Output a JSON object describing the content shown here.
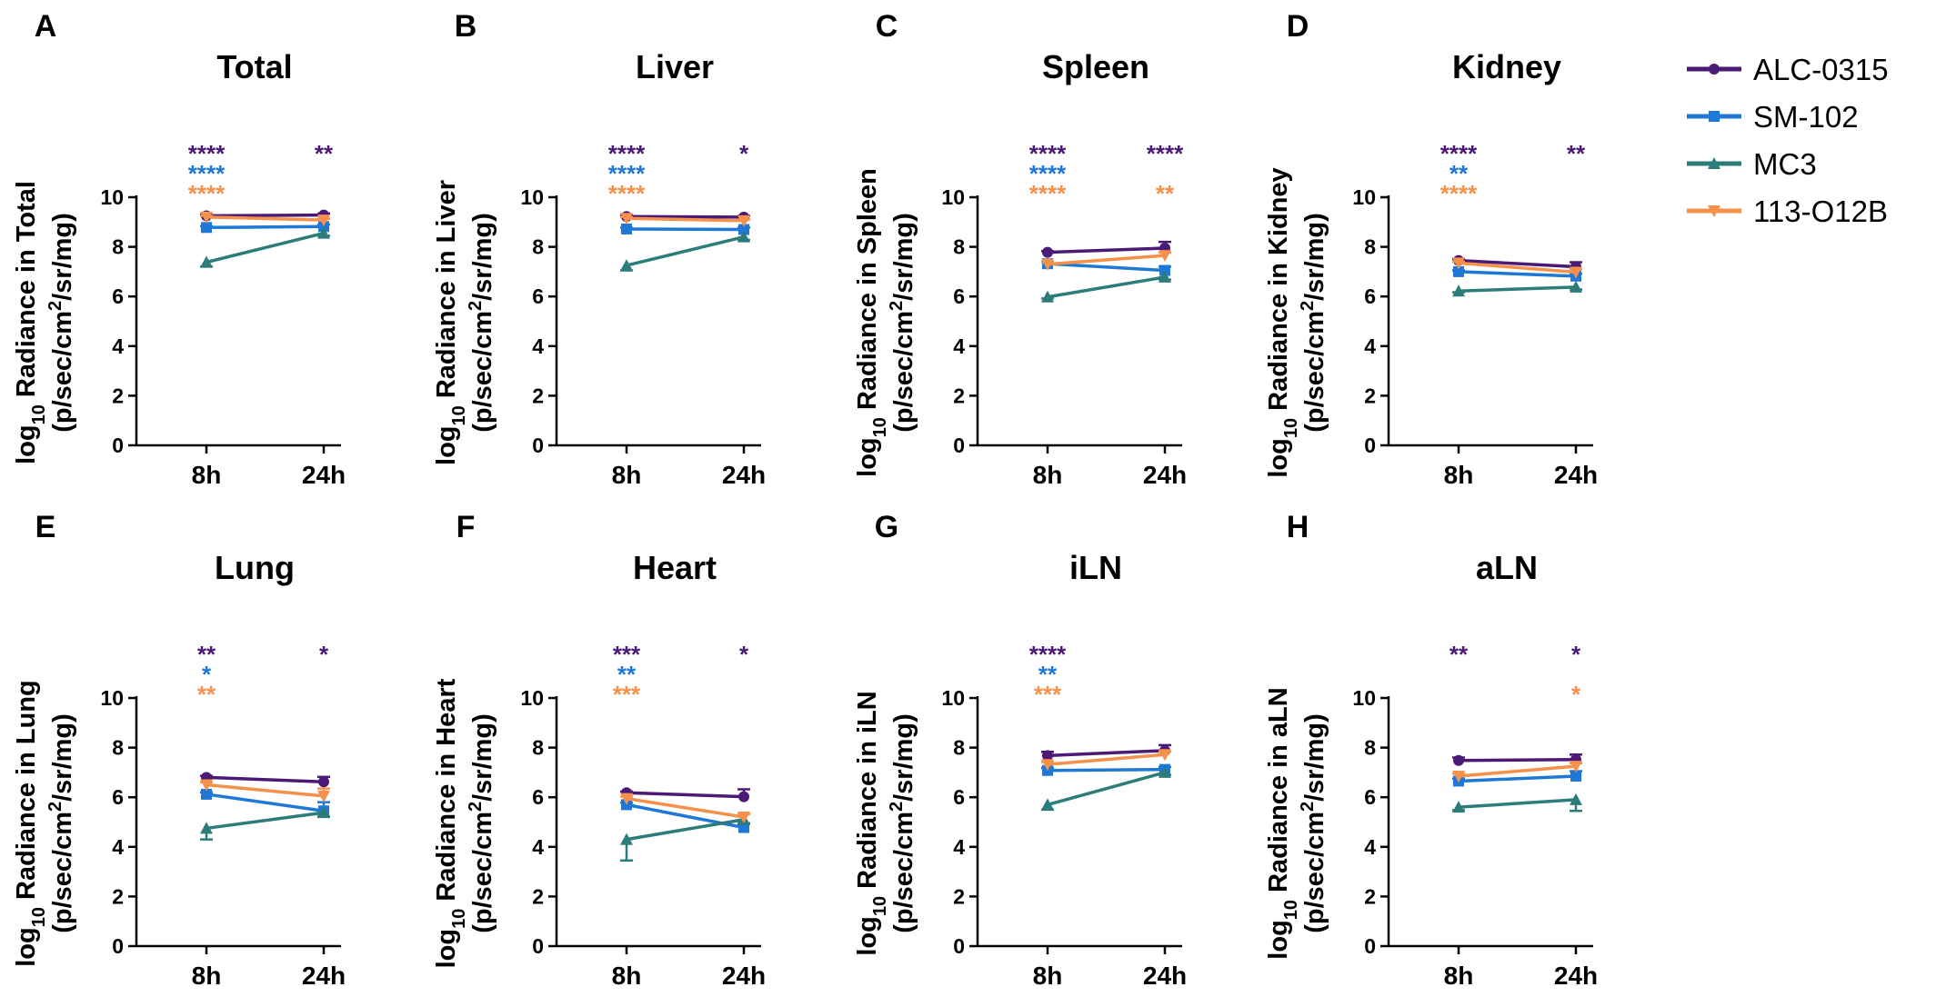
{
  "chart_data": {
    "type": "line",
    "x": [
      "8h",
      "24h"
    ],
    "ylim": [
      0,
      10
    ],
    "yticks": [
      "0",
      "2",
      "4",
      "6",
      "8",
      "10"
    ],
    "series_legend": [
      {
        "name": "ALC-0315",
        "color": "#4b1a77",
        "marker": "circle"
      },
      {
        "name": "SM-102",
        "color": "#1f78d6",
        "marker": "square"
      },
      {
        "name": "MC3",
        "color": "#2c7c7a",
        "marker": "triangle-up"
      },
      {
        "name": "113-O12B",
        "color": "#f5914a",
        "marker": "triangle-down"
      }
    ],
    "panels": [
      {
        "letter": "A",
        "title": "Total",
        "organ": "Total",
        "ylabel_line1_pre": "log",
        "ylabel_line1_sub": "10",
        "ylabel_line1_post": " Radiance in Total",
        "ylabel_line2_pre": "(p/sec/cm",
        "ylabel_line2_sup": "2",
        "ylabel_line2_post": "/sr/mg)",
        "series": [
          {
            "name": "ALC-0315",
            "values": [
              9.25,
              9.28
            ],
            "err": [
              0.05,
              0.06
            ]
          },
          {
            "name": "SM-102",
            "values": [
              8.78,
              8.82
            ],
            "err": [
              0.05,
              0.08
            ]
          },
          {
            "name": "MC3",
            "values": [
              7.38,
              8.55
            ],
            "err": [
              0.18,
              0.1
            ]
          },
          {
            "name": "113-O12B",
            "values": [
              9.2,
              9.08
            ],
            "err": [
              0.05,
              0.05
            ]
          }
        ],
        "stars": [
          {
            "x": "8h",
            "row": 0,
            "text": "****",
            "series": "ALC-0315"
          },
          {
            "x": "8h",
            "row": 1,
            "text": "****",
            "series": "SM-102"
          },
          {
            "x": "8h",
            "row": 2,
            "text": "****",
            "series": "113-O12B"
          },
          {
            "x": "24h",
            "row": 0,
            "text": "**",
            "series": "ALC-0315"
          }
        ]
      },
      {
        "letter": "B",
        "title": "Liver",
        "organ": "Liver",
        "ylabel_line1_pre": "log",
        "ylabel_line1_sub": "10",
        "ylabel_line1_post": " Radiance in Liver",
        "ylabel_line2_pre": "(p/sec/cm",
        "ylabel_line2_sup": "2",
        "ylabel_line2_post": "/sr/mg)",
        "series": [
          {
            "name": "ALC-0315",
            "values": [
              9.22,
              9.2
            ],
            "err": [
              0.05,
              0.05
            ]
          },
          {
            "name": "SM-102",
            "values": [
              8.72,
              8.7
            ],
            "err": [
              0.05,
              0.08
            ]
          },
          {
            "name": "MC3",
            "values": [
              7.25,
              8.4
            ],
            "err": [
              0.2,
              0.12
            ]
          },
          {
            "name": "113-O12B",
            "values": [
              9.15,
              9.05
            ],
            "err": [
              0.05,
              0.05
            ]
          }
        ],
        "stars": [
          {
            "x": "8h",
            "row": 0,
            "text": "****",
            "series": "ALC-0315"
          },
          {
            "x": "8h",
            "row": 1,
            "text": "****",
            "series": "SM-102"
          },
          {
            "x": "8h",
            "row": 2,
            "text": "****",
            "series": "113-O12B"
          },
          {
            "x": "24h",
            "row": 0,
            "text": "*",
            "series": "ALC-0315"
          }
        ]
      },
      {
        "letter": "C",
        "title": "Spleen",
        "organ": "Spleen",
        "ylabel_line1_pre": "log",
        "ylabel_line1_sub": "10",
        "ylabel_line1_post": " Radiance in Spleen",
        "ylabel_line2_pre": "(p/sec/cm",
        "ylabel_line2_sup": "2",
        "ylabel_line2_post": "/sr/mg)",
        "series": [
          {
            "name": "ALC-0315",
            "values": [
              7.78,
              7.95
            ],
            "err": [
              0.05,
              0.25
            ]
          },
          {
            "name": "SM-102",
            "values": [
              7.32,
              7.05
            ],
            "err": [
              0.08,
              0.15
            ]
          },
          {
            "name": "MC3",
            "values": [
              5.98,
              6.78
            ],
            "err": [
              0.06,
              0.1
            ]
          },
          {
            "name": "113-O12B",
            "values": [
              7.3,
              7.65
            ],
            "err": [
              0.08,
              0.12
            ]
          }
        ],
        "stars": [
          {
            "x": "8h",
            "row": 0,
            "text": "****",
            "series": "ALC-0315"
          },
          {
            "x": "8h",
            "row": 1,
            "text": "****",
            "series": "SM-102"
          },
          {
            "x": "8h",
            "row": 2,
            "text": "****",
            "series": "113-O12B"
          },
          {
            "x": "24h",
            "row": 0,
            "text": "****",
            "series": "ALC-0315"
          },
          {
            "x": "24h",
            "row": 2,
            "text": "**",
            "series": "113-O12B"
          }
        ]
      },
      {
        "letter": "D",
        "title": "Kidney",
        "organ": "Kidney",
        "ylabel_line1_pre": "log",
        "ylabel_line1_sub": "10",
        "ylabel_line1_post": " Radiance in Kidney",
        "ylabel_line2_pre": "(p/sec/cm",
        "ylabel_line2_sup": "2",
        "ylabel_line2_post": "/sr/mg)",
        "series": [
          {
            "name": "ALC-0315",
            "values": [
              7.45,
              7.2
            ],
            "err": [
              0.06,
              0.18
            ]
          },
          {
            "name": "SM-102",
            "values": [
              7.0,
              6.82
            ],
            "err": [
              0.05,
              0.1
            ]
          },
          {
            "name": "MC3",
            "values": [
              6.22,
              6.38
            ],
            "err": [
              0.05,
              0.1
            ]
          },
          {
            "name": "113-O12B",
            "values": [
              7.35,
              6.98
            ],
            "err": [
              0.05,
              0.12
            ]
          }
        ],
        "stars": [
          {
            "x": "8h",
            "row": 0,
            "text": "****",
            "series": "ALC-0315"
          },
          {
            "x": "8h",
            "row": 1,
            "text": "**",
            "series": "SM-102"
          },
          {
            "x": "8h",
            "row": 2,
            "text": "****",
            "series": "113-O12B"
          },
          {
            "x": "24h",
            "row": 0,
            "text": "**",
            "series": "ALC-0315"
          }
        ]
      },
      {
        "letter": "E",
        "title": "Lung",
        "organ": "Lung",
        "ylabel_line1_pre": "log",
        "ylabel_line1_sub": "10",
        "ylabel_line1_post": " Radiance in Lung",
        "ylabel_line2_pre": "(p/sec/cm",
        "ylabel_line2_sup": "2",
        "ylabel_line2_post": "/sr/mg)",
        "series": [
          {
            "name": "ALC-0315",
            "values": [
              6.8,
              6.62
            ],
            "err": [
              0.06,
              0.2
            ]
          },
          {
            "name": "SM-102",
            "values": [
              6.12,
              5.45
            ],
            "err": [
              0.08,
              0.35
            ]
          },
          {
            "name": "MC3",
            "values": [
              4.75,
              5.38
            ],
            "err": [
              0.45,
              0.15
            ]
          },
          {
            "name": "113-O12B",
            "values": [
              6.5,
              6.05
            ],
            "err": [
              0.1,
              0.3
            ]
          }
        ],
        "stars": [
          {
            "x": "8h",
            "row": 0,
            "text": "**",
            "series": "ALC-0315"
          },
          {
            "x": "8h",
            "row": 1,
            "text": "*",
            "series": "SM-102"
          },
          {
            "x": "8h",
            "row": 2,
            "text": "**",
            "series": "113-O12B"
          },
          {
            "x": "24h",
            "row": 0,
            "text": "*",
            "series": "ALC-0315"
          }
        ]
      },
      {
        "letter": "F",
        "title": "Heart",
        "organ": "Heart",
        "ylabel_line1_pre": "log",
        "ylabel_line1_sub": "10",
        "ylabel_line1_post": " Radiance in Heart",
        "ylabel_line2_pre": "(p/sec/cm",
        "ylabel_line2_sup": "2",
        "ylabel_line2_post": "/sr/mg)",
        "series": [
          {
            "name": "ALC-0315",
            "values": [
              6.18,
              6.02
            ],
            "err": [
              0.05,
              0.3
            ]
          },
          {
            "name": "SM-102",
            "values": [
              5.7,
              4.78
            ],
            "err": [
              0.08,
              0.15
            ]
          },
          {
            "name": "MC3",
            "values": [
              4.3,
              5.1
            ],
            "err": [
              0.85,
              0.15
            ]
          },
          {
            "name": "113-O12B",
            "values": [
              5.95,
              5.2
            ],
            "err": [
              0.08,
              0.12
            ]
          }
        ],
        "stars": [
          {
            "x": "8h",
            "row": 0,
            "text": "***",
            "series": "ALC-0315"
          },
          {
            "x": "8h",
            "row": 1,
            "text": "**",
            "series": "SM-102"
          },
          {
            "x": "8h",
            "row": 2,
            "text": "***",
            "series": "113-O12B"
          },
          {
            "x": "24h",
            "row": 0,
            "text": "*",
            "series": "ALC-0315"
          }
        ]
      },
      {
        "letter": "G",
        "title": "iLN",
        "organ": "iLN",
        "ylabel_line1_pre": "log",
        "ylabel_line1_sub": "10",
        "ylabel_line1_post": " Radiance in iLN",
        "ylabel_line2_pre": "(p/sec/cm",
        "ylabel_line2_sup": "2",
        "ylabel_line2_post": "/sr/mg)",
        "series": [
          {
            "name": "ALC-0315",
            "values": [
              7.68,
              7.88
            ],
            "err": [
              0.15,
              0.22
            ]
          },
          {
            "name": "SM-102",
            "values": [
              7.08,
              7.12
            ],
            "err": [
              0.1,
              0.1
            ]
          },
          {
            "name": "MC3",
            "values": [
              5.7,
              7.0
            ],
            "err": [
              0.2,
              0.1
            ]
          },
          {
            "name": "113-O12B",
            "values": [
              7.32,
              7.72
            ],
            "err": [
              0.1,
              0.12
            ]
          }
        ],
        "stars": [
          {
            "x": "8h",
            "row": 0,
            "text": "****",
            "series": "ALC-0315"
          },
          {
            "x": "8h",
            "row": 1,
            "text": "**",
            "series": "SM-102"
          },
          {
            "x": "8h",
            "row": 2,
            "text": "***",
            "series": "113-O12B"
          }
        ]
      },
      {
        "letter": "H",
        "title": "aLN",
        "organ": "aLN",
        "ylabel_line1_pre": "log",
        "ylabel_line1_sub": "10",
        "ylabel_line1_post": " Radiance in aLN",
        "ylabel_line2_pre": "(p/sec/cm",
        "ylabel_line2_sup": "2",
        "ylabel_line2_post": "/sr/mg)",
        "series": [
          {
            "name": "ALC-0315",
            "values": [
              7.48,
              7.52
            ],
            "err": [
              0.12,
              0.2
            ]
          },
          {
            "name": "SM-102",
            "values": [
              6.65,
              6.85
            ],
            "err": [
              0.1,
              0.2
            ]
          },
          {
            "name": "MC3",
            "values": [
              5.6,
              5.9
            ],
            "err": [
              0.12,
              0.45
            ]
          },
          {
            "name": "113-O12B",
            "values": [
              6.85,
              7.25
            ],
            "err": [
              0.1,
              0.12
            ]
          }
        ],
        "stars": [
          {
            "x": "8h",
            "row": 0,
            "text": "**",
            "series": "ALC-0315"
          },
          {
            "x": "24h",
            "row": 0,
            "text": "*",
            "series": "ALC-0315"
          },
          {
            "x": "24h",
            "row": 2,
            "text": "*",
            "series": "113-O12B"
          }
        ]
      }
    ]
  }
}
